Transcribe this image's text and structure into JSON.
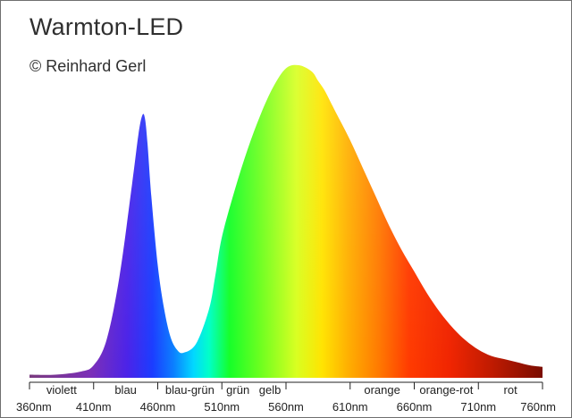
{
  "chart_data": {
    "type": "area",
    "title": "Warmton-LED",
    "subtitle": "© Reinhard Gerl",
    "xlabel": "",
    "ylabel": "",
    "xlim": [
      360,
      760
    ],
    "ylim": [
      0,
      1
    ],
    "x_ticks": [
      360,
      410,
      460,
      510,
      560,
      610,
      660,
      710,
      760
    ],
    "x_tick_labels": [
      "360nm",
      "410nm",
      "460nm",
      "510nm",
      "560nm",
      "610nm",
      "660nm",
      "710nm",
      "760nm"
    ],
    "bands": [
      {
        "label": "violett",
        "from": 360,
        "to": 410
      },
      {
        "label": "blau",
        "from": 410,
        "to": 460
      },
      {
        "label": "blau-grün",
        "from": 460,
        "to": 510
      },
      {
        "label": "grün",
        "from": 510,
        "to": 535
      },
      {
        "label": "gelb",
        "from": 535,
        "to": 560
      },
      {
        "label": "orange",
        "from": 610,
        "to": 660
      },
      {
        "label": "orange-rot",
        "from": 660,
        "to": 710
      },
      {
        "label": "rot",
        "from": 710,
        "to": 760
      }
    ],
    "series": [
      {
        "x": [
          360,
          380,
          400,
          410,
          420,
          430,
          440,
          445,
          448,
          450,
          452,
          455,
          460,
          465,
          470,
          475,
          480,
          490,
          500,
          505,
          510,
          520,
          530,
          540,
          550,
          560,
          570,
          580,
          585,
          590,
          595,
          600,
          610,
          620,
          630,
          640,
          650,
          660,
          670,
          680,
          690,
          700,
          710,
          720,
          730,
          740,
          750,
          760
        ],
        "y": [
          0.01,
          0.01,
          0.02,
          0.04,
          0.12,
          0.32,
          0.62,
          0.78,
          0.84,
          0.83,
          0.75,
          0.58,
          0.36,
          0.22,
          0.13,
          0.09,
          0.08,
          0.11,
          0.22,
          0.33,
          0.45,
          0.6,
          0.73,
          0.84,
          0.93,
          0.99,
          1.0,
          0.98,
          0.95,
          0.92,
          0.88,
          0.84,
          0.76,
          0.67,
          0.58,
          0.49,
          0.41,
          0.34,
          0.27,
          0.21,
          0.16,
          0.12,
          0.09,
          0.07,
          0.06,
          0.05,
          0.04,
          0.035
        ]
      }
    ],
    "grid": false,
    "legend": "none"
  }
}
